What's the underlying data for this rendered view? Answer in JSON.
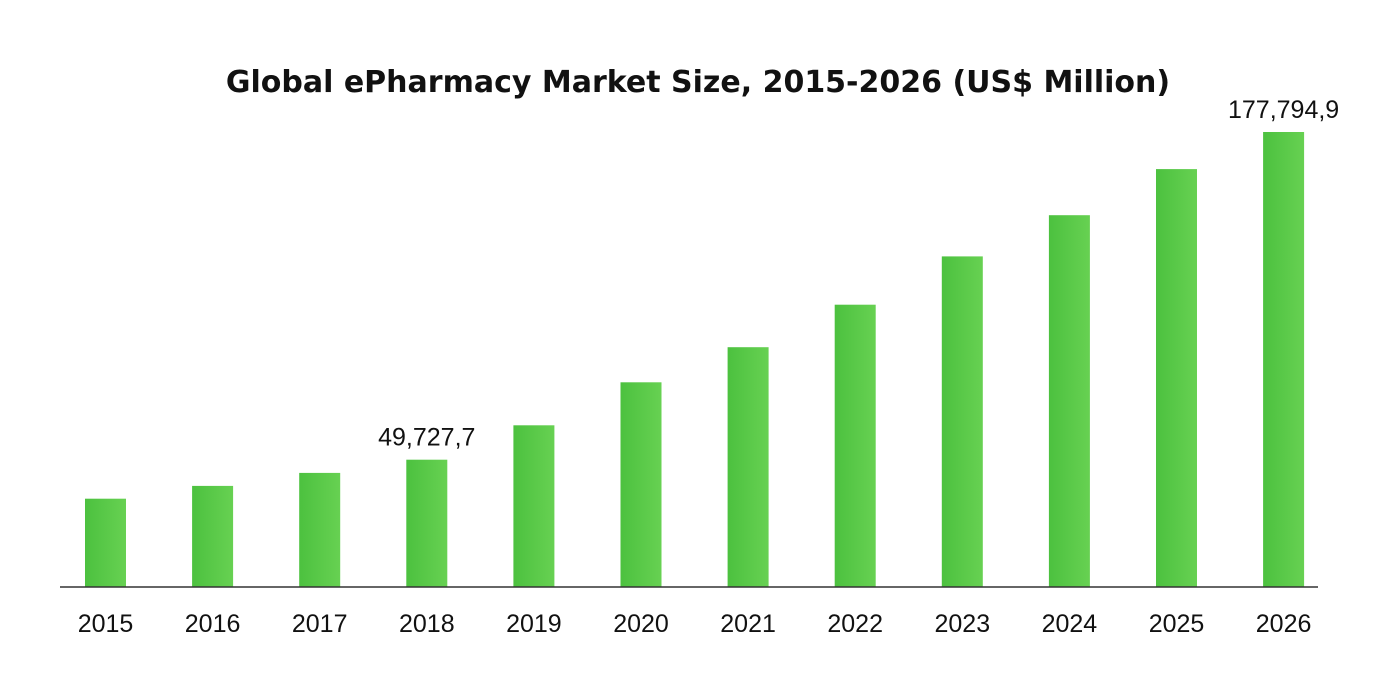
{
  "chart_data": {
    "type": "bar",
    "title": "Global ePharmacy Market Size, 2015-2026 (US$ Million)",
    "xlabel": "",
    "ylabel": "",
    "categories": [
      "2015",
      "2016",
      "2017",
      "2018",
      "2019",
      "2020",
      "2021",
      "2022",
      "2023",
      "2024",
      "2025",
      "2026"
    ],
    "values": [
      34500,
      39500,
      44600,
      49727.7,
      63200,
      80000,
      93700,
      110300,
      129200,
      145300,
      163300,
      177794.9
    ],
    "ylim": [
      0,
      180000
    ],
    "grid": false,
    "legend": "none",
    "bar_color_start": "#4cc13f",
    "bar_color_end": "#67d152",
    "axis_color": "#333333",
    "data_labels": [
      {
        "index": 3,
        "text": "49,727,7"
      },
      {
        "index": 11,
        "text": "177,794,9"
      }
    ]
  }
}
